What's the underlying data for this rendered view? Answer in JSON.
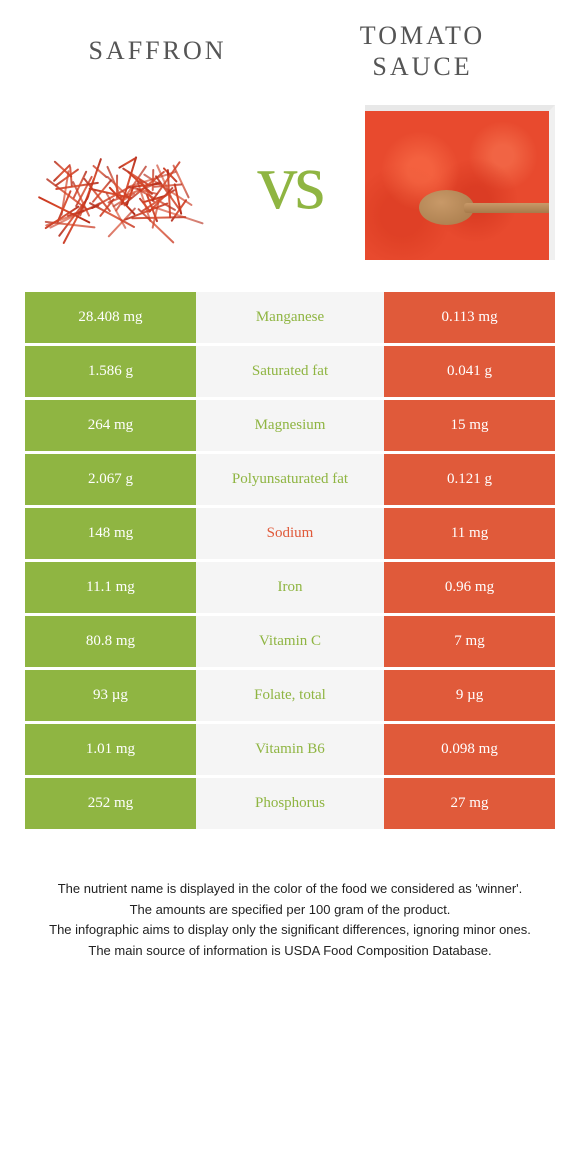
{
  "colors": {
    "left_winner": "#8fb542",
    "right_winner": "#e05a3a",
    "mid_bg": "#f5f5f5",
    "text_on_color": "#ffffff",
    "title_color": "#555555"
  },
  "header": {
    "left_title": "Saffron",
    "right_title": "Tomato Sauce",
    "vs_label": "vs"
  },
  "nutrients": [
    {
      "name": "Manganese",
      "left": "28.408 mg",
      "right": "0.113 mg",
      "winner": "left"
    },
    {
      "name": "Saturated fat",
      "left": "1.586 g",
      "right": "0.041 g",
      "winner": "left"
    },
    {
      "name": "Magnesium",
      "left": "264 mg",
      "right": "15 mg",
      "winner": "left"
    },
    {
      "name": "Polyunsaturated fat",
      "left": "2.067 g",
      "right": "0.121 g",
      "winner": "left"
    },
    {
      "name": "Sodium",
      "left": "148 mg",
      "right": "11 mg",
      "winner": "right"
    },
    {
      "name": "Iron",
      "left": "11.1 mg",
      "right": "0.96 mg",
      "winner": "left"
    },
    {
      "name": "Vitamin C",
      "left": "80.8 mg",
      "right": "7 mg",
      "winner": "left"
    },
    {
      "name": "Folate, total",
      "left": "93 µg",
      "right": "9 µg",
      "winner": "left"
    },
    {
      "name": "Vitamin B6",
      "left": "1.01 mg",
      "right": "0.098 mg",
      "winner": "left"
    },
    {
      "name": "Phosphorus",
      "left": "252 mg",
      "right": "27 mg",
      "winner": "left"
    }
  ],
  "footnotes": [
    "The nutrient name is displayed in the color of the food we considered as 'winner'.",
    "The amounts are specified per 100 gram of the product.",
    "The infographic aims to display only the significant differences, ignoring minor ones.",
    "The main source of information is USDA Food Composition Database."
  ]
}
